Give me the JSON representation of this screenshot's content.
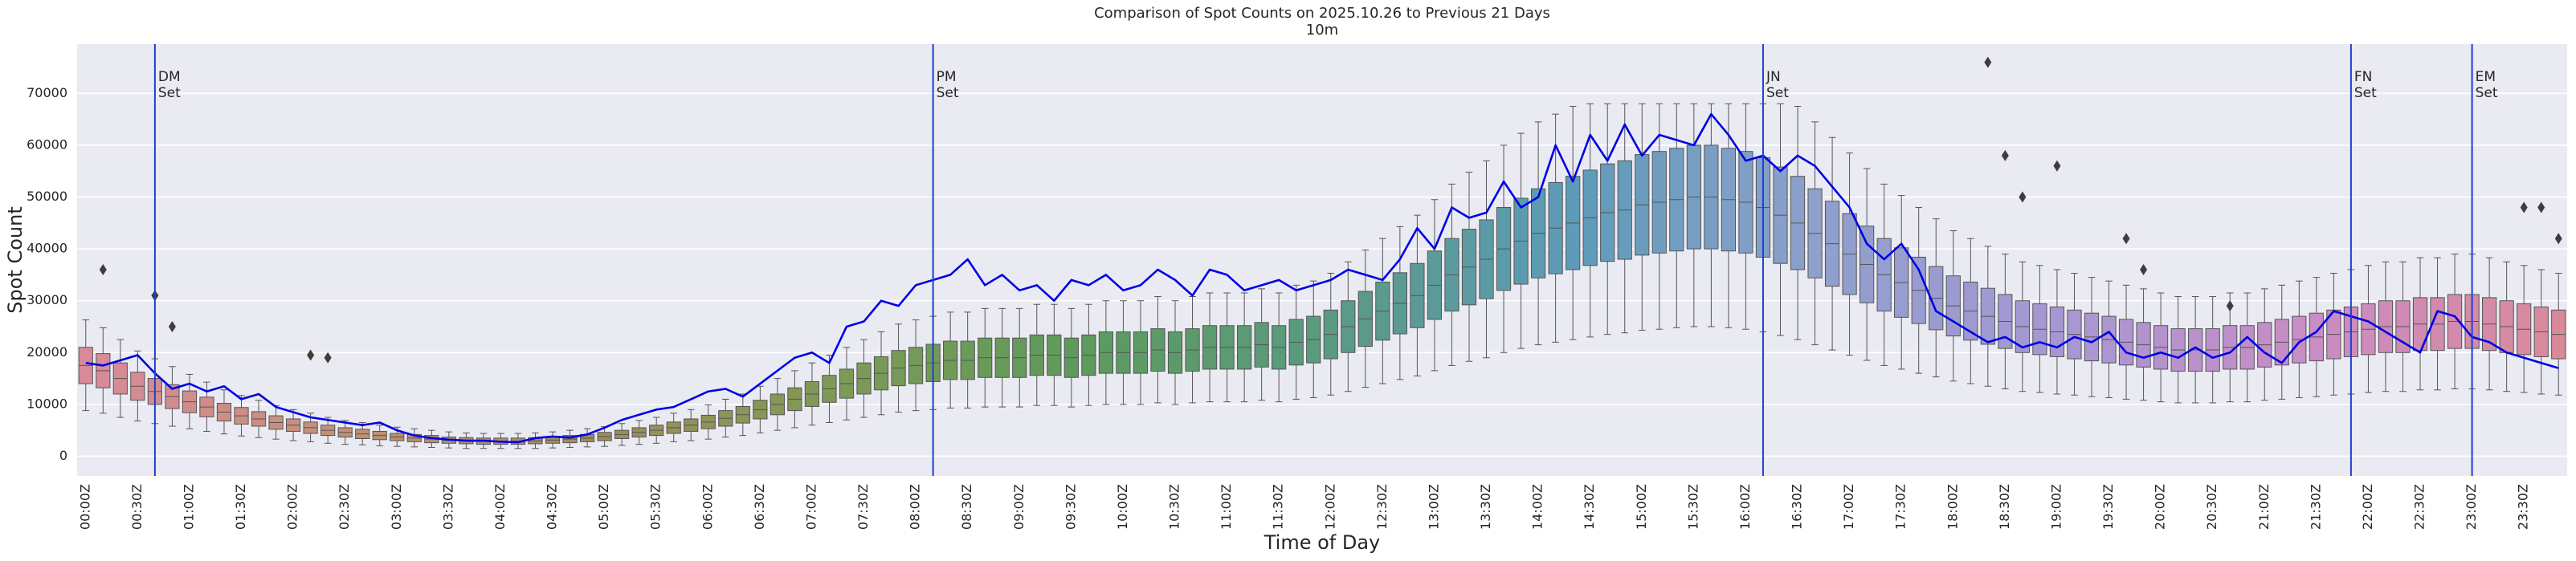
{
  "chart_data": {
    "type": "box",
    "title": "Comparison of Spot Counts on 2025.10.26 to Previous 21 Days",
    "subtitle": "10m",
    "x_label": "Time of Day",
    "y_label": "Spot Count",
    "categories": [
      "00:00Z",
      null,
      null,
      "00:30Z",
      null,
      null,
      "01:00Z",
      null,
      null,
      "01:30Z",
      null,
      null,
      "02:00Z",
      null,
      null,
      "02:30Z",
      null,
      null,
      "03:00Z",
      null,
      null,
      "03:30Z",
      null,
      null,
      "04:00Z",
      null,
      null,
      "04:30Z",
      null,
      null,
      "05:00Z",
      null,
      null,
      "05:30Z",
      null,
      null,
      "06:00Z",
      null,
      null,
      "06:30Z",
      null,
      null,
      "07:00Z",
      null,
      null,
      "07:30Z",
      null,
      null,
      "08:00Z",
      null,
      null,
      "08:30Z",
      null,
      null,
      "09:00Z",
      null,
      null,
      "09:30Z",
      null,
      null,
      "10:00Z",
      null,
      null,
      "10:30Z",
      null,
      null,
      "11:00Z",
      null,
      null,
      "11:30Z",
      null,
      null,
      "12:00Z",
      null,
      null,
      "12:30Z",
      null,
      null,
      "13:00Z",
      null,
      null,
      "13:30Z",
      null,
      null,
      "14:00Z",
      null,
      null,
      "14:30Z",
      null,
      null,
      "15:00Z",
      null,
      null,
      "15:30Z",
      null,
      null,
      "16:00Z",
      null,
      null,
      "16:30Z",
      null,
      null,
      "17:00Z",
      null,
      null,
      "17:30Z",
      null,
      null,
      "18:00Z",
      null,
      null,
      "18:30Z",
      null,
      null,
      "19:00Z",
      null,
      null,
      "19:30Z",
      null,
      null,
      "20:00Z",
      null,
      null,
      "20:30Z",
      null,
      null,
      "21:00Z",
      null,
      null,
      "21:30Z",
      null,
      null,
      "22:00Z",
      null,
      null,
      "22:30Z",
      null,
      null,
      "23:00Z",
      null,
      null,
      "23:30Z",
      null,
      null
    ],
    "whislo": [
      8800,
      8300,
      7500,
      6800,
      6300,
      5800,
      5300,
      4800,
      4300,
      3900,
      3600,
      3300,
      3000,
      2800,
      2500,
      2300,
      2200,
      2000,
      1900,
      1800,
      1700,
      1600,
      1500,
      1500,
      1500,
      1500,
      1500,
      1600,
      1700,
      1800,
      1900,
      2100,
      2300,
      2500,
      2800,
      3000,
      3300,
      3700,
      4000,
      4500,
      5000,
      5500,
      6000,
      6500,
      7000,
      7500,
      8000,
      8500,
      8800,
      9000,
      9300,
      9300,
      9500,
      9500,
      9500,
      9800,
      9800,
      9500,
      9800,
      10000,
      10000,
      10000,
      10300,
      10000,
      10300,
      10500,
      10500,
      10500,
      10800,
      10500,
      11000,
      11300,
      11800,
      12500,
      13300,
      14000,
      14800,
      15500,
      16500,
      17500,
      18300,
      19000,
      20000,
      20800,
      21500,
      22000,
      22500,
      23000,
      23500,
      23800,
      24300,
      24500,
      24800,
      25000,
      25000,
      24800,
      24500,
      24000,
      23300,
      22500,
      21500,
      20500,
      19500,
      18500,
      17500,
      16800,
      16000,
      15300,
      14500,
      14000,
      13500,
      13000,
      12500,
      12300,
      12000,
      11800,
      11500,
      11300,
      11000,
      10800,
      10500,
      10300,
      10300,
      10300,
      10500,
      10500,
      10800,
      11000,
      11300,
      11500,
      11800,
      12000,
      12300,
      12500,
      12500,
      12800,
      12800,
      13000,
      13000,
      12800,
      12500,
      12300,
      12000,
      11800
    ],
    "q1": [
      14000,
      13200,
      12000,
      10800,
      10000,
      9200,
      8400,
      7600,
      6800,
      6200,
      5800,
      5200,
      4800,
      4400,
      4000,
      3700,
      3400,
      3200,
      3000,
      2800,
      2600,
      2500,
      2400,
      2300,
      2300,
      2300,
      2400,
      2500,
      2600,
      2800,
      3000,
      3400,
      3700,
      4000,
      4400,
      4800,
      5300,
      5800,
      6400,
      7200,
      8000,
      8800,
      9600,
      10400,
      11200,
      12000,
      12800,
      13600,
      14000,
      14400,
      14800,
      14800,
      15200,
      15200,
      15200,
      15600,
      15600,
      15200,
      15600,
      16000,
      16000,
      16000,
      16400,
      16000,
      16400,
      16800,
      16800,
      16800,
      17200,
      16800,
      17600,
      18000,
      18800,
      20000,
      21200,
      22400,
      23600,
      24800,
      26400,
      28000,
      29200,
      30400,
      32000,
      33200,
      34400,
      35200,
      36000,
      36800,
      37600,
      38000,
      38800,
      39200,
      39600,
      40000,
      40000,
      39600,
      39200,
      38400,
      37200,
      36000,
      34400,
      32800,
      31200,
      29600,
      28000,
      26800,
      25600,
      24400,
      23200,
      22400,
      21600,
      20800,
      20000,
      19600,
      19200,
      18800,
      18400,
      18000,
      17600,
      17200,
      16800,
      16400,
      16400,
      16400,
      16800,
      16800,
      17200,
      17600,
      18000,
      18400,
      18800,
      19200,
      19600,
      20000,
      20000,
      20400,
      20400,
      20800,
      20800,
      20400,
      20000,
      19600,
      19200,
      18800
    ],
    "med": [
      17500,
      16500,
      15000,
      13500,
      12500,
      11500,
      10500,
      9500,
      8500,
      7800,
      7200,
      6500,
      6000,
      5500,
      5000,
      4600,
      4300,
      4000,
      3700,
      3500,
      3300,
      3100,
      3000,
      2900,
      2900,
      2900,
      3000,
      3100,
      3300,
      3500,
      3800,
      4200,
      4600,
      5000,
      5500,
      6000,
      6600,
      7300,
      8000,
      9000,
      10000,
      11000,
      12000,
      13000,
      14000,
      15000,
      16000,
      17000,
      17500,
      18000,
      18500,
      18500,
      19000,
      19000,
      19000,
      19500,
      19500,
      19000,
      19500,
      20000,
      20000,
      20000,
      20500,
      20000,
      20500,
      21000,
      21000,
      21000,
      21500,
      21000,
      22000,
      22500,
      23500,
      25000,
      26500,
      28000,
      29500,
      31000,
      33000,
      35000,
      36500,
      38000,
      40000,
      41500,
      43000,
      44000,
      45000,
      46000,
      47000,
      47500,
      48500,
      49000,
      49500,
      50000,
      50000,
      49500,
      49000,
      48000,
      46500,
      45000,
      43000,
      41000,
      39000,
      37000,
      35000,
      33500,
      32000,
      30500,
      29000,
      28000,
      27000,
      26000,
      25000,
      24500,
      24000,
      23500,
      23000,
      22500,
      22000,
      21500,
      21000,
      20500,
      20500,
      20500,
      21000,
      21000,
      21500,
      22000,
      22500,
      23000,
      23500,
      24000,
      24500,
      25000,
      25000,
      25500,
      25500,
      26000,
      26000,
      25500,
      25000,
      24500,
      24000,
      23500
    ],
    "q3": [
      21000,
      19800,
      18000,
      16200,
      15000,
      13800,
      12600,
      11400,
      10200,
      9400,
      8600,
      7800,
      7200,
      6600,
      6000,
      5500,
      5200,
      4800,
      4400,
      4200,
      4000,
      3700,
      3600,
      3500,
      3500,
      3500,
      3600,
      3700,
      4000,
      4200,
      4600,
      5000,
      5500,
      6000,
      6600,
      7200,
      7900,
      8800,
      9600,
      10800,
      12000,
      13200,
      14400,
      15600,
      16800,
      18000,
      19200,
      20400,
      21000,
      21600,
      22200,
      22200,
      22800,
      22800,
      22800,
      23400,
      23400,
      22800,
      23400,
      24000,
      24000,
      24000,
      24600,
      24000,
      24600,
      25200,
      25200,
      25200,
      25800,
      25200,
      26400,
      27000,
      28200,
      30000,
      31800,
      33600,
      35400,
      37200,
      39600,
      42000,
      43800,
      45600,
      48000,
      49800,
      51600,
      52800,
      54000,
      55200,
      56400,
      57000,
      58200,
      58800,
      59400,
      60000,
      60000,
      59400,
      58800,
      57600,
      55800,
      54000,
      51600,
      49200,
      46800,
      44400,
      42000,
      40200,
      38400,
      36600,
      34800,
      33600,
      32400,
      31200,
      30000,
      29400,
      28800,
      28200,
      27600,
      27000,
      26400,
      25800,
      25200,
      24600,
      24600,
      24600,
      25200,
      25200,
      25800,
      26400,
      27000,
      27600,
      28200,
      28800,
      29400,
      30000,
      30000,
      30600,
      30600,
      31200,
      31200,
      30600,
      30000,
      29400,
      28800,
      28200
    ],
    "whishi": [
      26300,
      24800,
      22500,
      20300,
      18800,
      17300,
      15800,
      14300,
      12800,
      11700,
      10800,
      9800,
      9000,
      8300,
      7500,
      6900,
      6500,
      6000,
      5600,
      5300,
      5000,
      4700,
      4500,
      4400,
      4400,
      4400,
      4500,
      4700,
      5000,
      5300,
      5700,
      6300,
      6900,
      7500,
      8300,
      9000,
      9900,
      11000,
      12000,
      13500,
      15000,
      16500,
      18000,
      19500,
      21000,
      22500,
      24000,
      25500,
      26300,
      27000,
      27800,
      27800,
      28500,
      28500,
      28500,
      29300,
      29300,
      28500,
      29300,
      30000,
      30000,
      30000,
      30800,
      30000,
      30800,
      31500,
      31500,
      31500,
      32300,
      31500,
      33000,
      33800,
      35300,
      37500,
      39800,
      42000,
      44300,
      46500,
      49500,
      52500,
      54800,
      57000,
      60000,
      62300,
      64500,
      66000,
      67500,
      68000,
      68000,
      68000,
      68000,
      68000,
      68000,
      68000,
      68000,
      68000,
      68000,
      68000,
      68000,
      67500,
      64500,
      61500,
      58500,
      55500,
      52500,
      50300,
      48000,
      45800,
      43500,
      42000,
      40500,
      39000,
      37500,
      36800,
      36000,
      35300,
      34500,
      33800,
      33000,
      32300,
      31500,
      30800,
      30800,
      30800,
      31500,
      31500,
      32300,
      33000,
      33800,
      34500,
      35300,
      36000,
      36800,
      37500,
      37500,
      38300,
      38300,
      39000,
      39000,
      38300,
      37500,
      36800,
      36000,
      35300
    ],
    "palette": [
      "#d98a9a",
      "#c49078",
      "#a08c5e",
      "#7f9a55",
      "#5e9a5c",
      "#5a9a80",
      "#5d9bb8",
      "#8ea0cc",
      "#a797d3",
      "#c98cc4",
      "#d98a9a"
    ],
    "line": {
      "color": "#0000e6",
      "values": [
        18000,
        17500,
        18500,
        19500,
        16000,
        13000,
        14000,
        12500,
        13500,
        11000,
        12000,
        9500,
        8500,
        7500,
        7000,
        6500,
        6000,
        6500,
        5000,
        4000,
        3500,
        3200,
        3000,
        3000,
        2800,
        2700,
        3500,
        3800,
        3600,
        4200,
        5500,
        7000,
        8000,
        9000,
        9500,
        11000,
        12500,
        13000,
        11500,
        14000,
        16500,
        19000,
        20000,
        18000,
        25000,
        26000,
        30000,
        29000,
        33000,
        34000,
        35000,
        38000,
        33000,
        35000,
        32000,
        33000,
        30000,
        34000,
        33000,
        35000,
        32000,
        33000,
        36000,
        34000,
        31000,
        36000,
        35000,
        32000,
        33000,
        34000,
        32000,
        33000,
        34000,
        36000,
        35000,
        34000,
        38000,
        44000,
        40000,
        48000,
        46000,
        47000,
        53000,
        48000,
        50000,
        60000,
        53000,
        62000,
        57000,
        64000,
        58000,
        62000,
        61000,
        60000,
        66000,
        62000,
        57000,
        58000,
        55000,
        58000,
        56000,
        52000,
        48000,
        41000,
        38000,
        41000,
        36000,
        28000,
        26000,
        24000,
        22000,
        23000,
        21000,
        22000,
        21000,
        23000,
        22000,
        24000,
        20000,
        19000,
        20000,
        19000,
        21000,
        19000,
        20000,
        23000,
        20000,
        18000,
        22000,
        24000,
        28000,
        27000,
        26000,
        24000,
        22000,
        20000,
        28000,
        27000,
        23000,
        22000,
        20000,
        19000,
        18000,
        17000
      ]
    },
    "outliers": [
      {
        "at": 1,
        "value": 36000
      },
      {
        "at": 4,
        "value": 31000
      },
      {
        "at": 5,
        "value": 25000
      },
      {
        "at": 13,
        "value": 19500
      },
      {
        "at": 14,
        "value": 19000
      },
      {
        "at": 110,
        "value": 76000
      },
      {
        "at": 111,
        "value": 58000
      },
      {
        "at": 112,
        "value": 50000
      },
      {
        "at": 114,
        "value": 56000
      },
      {
        "at": 118,
        "value": 42000
      },
      {
        "at": 119,
        "value": 36000
      },
      {
        "at": 124,
        "value": 29000
      },
      {
        "at": 141,
        "value": 48000
      },
      {
        "at": 142,
        "value": 48000
      },
      {
        "at": 143,
        "value": 42000
      }
    ],
    "vlines": {
      "color": "#1f3fd0",
      "items": [
        {
          "at": 4,
          "lines": [
            "DM",
            "Set"
          ]
        },
        {
          "at": 49,
          "lines": [
            "PM",
            "Set"
          ]
        },
        {
          "at": 97,
          "lines": [
            "JN",
            "Set"
          ]
        },
        {
          "at": 131,
          "lines": [
            "FN",
            "Set"
          ]
        },
        {
          "at": 138,
          "lines": [
            "EM",
            "Set"
          ]
        }
      ]
    },
    "ylim": [
      -3800,
      79500
    ],
    "yticks": [
      0,
      10000,
      20000,
      30000,
      40000,
      50000,
      60000,
      70000
    ],
    "grid": true
  }
}
